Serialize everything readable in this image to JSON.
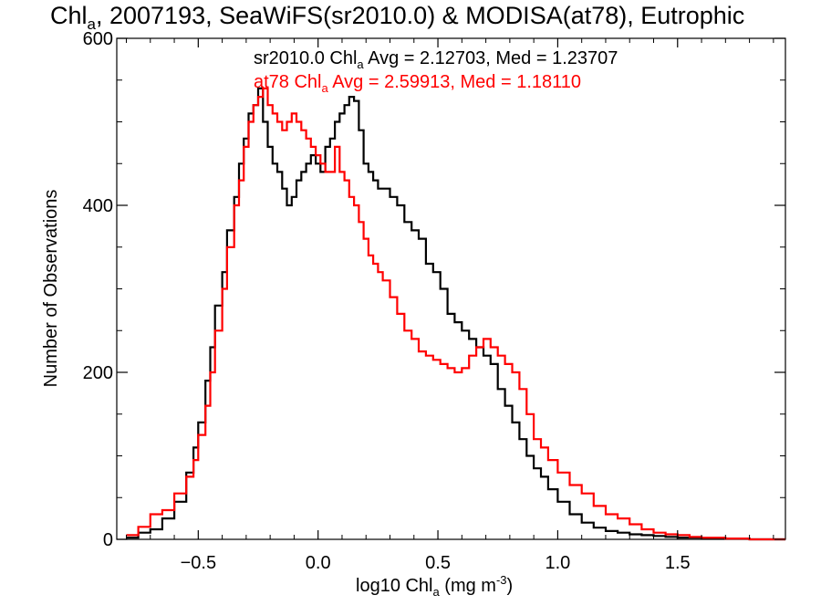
{
  "chart_data": {
    "type": "line",
    "title": {
      "main": "Chl",
      "main_sub": "a",
      "rest": ", 2007193, SeaWiFS(sr2010.0) & MODISA(at78), Eutrophic"
    },
    "xlabel": {
      "pre": "log10 Chl",
      "sub": "a",
      "mid": " (mg m",
      "sup": "-3",
      "post": ")"
    },
    "ylabel": "Number of Observations",
    "xlim": [
      -0.84,
      1.95
    ],
    "ylim": [
      0,
      600
    ],
    "xticks": [
      -0.5,
      0.0,
      0.5,
      1.0,
      1.5
    ],
    "xtick_labels": [
      "−0.5",
      "0.0",
      "0.5",
      "1.0",
      "1.5"
    ],
    "yticks": [
      0,
      200,
      400,
      600
    ],
    "ytick_labels": [
      "0",
      "200",
      "400",
      "600"
    ],
    "grid": false,
    "legend_placement": "top-center",
    "annotations": [
      {
        "pre": "sr2010.0 Chl",
        "sub": "a",
        "post": " Avg = 2.12703, Med = 1.23707",
        "color": "#000000"
      },
      {
        "pre": "at78 Chl",
        "sub": "a",
        "post": " Avg = 2.59913, Med = 1.18110",
        "color": "#ff0000"
      }
    ],
    "series": [
      {
        "color": "#000000",
        "x": [
          -0.8,
          -0.75,
          -0.7,
          -0.65,
          -0.6,
          -0.55,
          -0.52,
          -0.5,
          -0.47,
          -0.45,
          -0.43,
          -0.4,
          -0.38,
          -0.35,
          -0.33,
          -0.31,
          -0.29,
          -0.27,
          -0.25,
          -0.23,
          -0.21,
          -0.19,
          -0.17,
          -0.15,
          -0.13,
          -0.11,
          -0.09,
          -0.07,
          -0.05,
          -0.03,
          -0.01,
          0.01,
          0.03,
          0.05,
          0.07,
          0.09,
          0.11,
          0.13,
          0.15,
          0.17,
          0.19,
          0.21,
          0.23,
          0.25,
          0.27,
          0.3,
          0.33,
          0.36,
          0.39,
          0.42,
          0.45,
          0.48,
          0.51,
          0.54,
          0.57,
          0.6,
          0.63,
          0.66,
          0.69,
          0.72,
          0.75,
          0.78,
          0.81,
          0.84,
          0.87,
          0.9,
          0.93,
          0.96,
          1.0,
          1.05,
          1.1,
          1.15,
          1.2,
          1.25,
          1.3,
          1.35,
          1.4,
          1.45,
          1.5,
          1.55,
          1.6,
          1.65,
          1.7,
          1.75,
          1.8,
          1.85,
          1.9,
          1.95
        ],
        "y": [
          2,
          8,
          12,
          25,
          45,
          80,
          110,
          140,
          190,
          230,
          280,
          320,
          370,
          410,
          450,
          480,
          510,
          520,
          540,
          500,
          470,
          450,
          440,
          420,
          400,
          410,
          430,
          440,
          450,
          460,
          450,
          440,
          470,
          480,
          500,
          510,
          520,
          530,
          525,
          490,
          450,
          440,
          430,
          420,
          420,
          410,
          400,
          380,
          370,
          360,
          330,
          320,
          300,
          270,
          260,
          250,
          240,
          230,
          220,
          210,
          180,
          160,
          140,
          120,
          100,
          85,
          75,
          60,
          45,
          30,
          20,
          14,
          10,
          8,
          6,
          5,
          4,
          3,
          2,
          2,
          1,
          1,
          1,
          1,
          0,
          0,
          0,
          0
        ]
      },
      {
        "color": "#ff0000",
        "x": [
          -0.8,
          -0.75,
          -0.7,
          -0.65,
          -0.6,
          -0.55,
          -0.52,
          -0.5,
          -0.47,
          -0.45,
          -0.43,
          -0.4,
          -0.38,
          -0.35,
          -0.33,
          -0.31,
          -0.29,
          -0.27,
          -0.25,
          -0.23,
          -0.21,
          -0.19,
          -0.17,
          -0.15,
          -0.13,
          -0.11,
          -0.09,
          -0.07,
          -0.05,
          -0.03,
          -0.01,
          0.01,
          0.03,
          0.05,
          0.07,
          0.09,
          0.11,
          0.13,
          0.15,
          0.17,
          0.19,
          0.21,
          0.23,
          0.25,
          0.27,
          0.3,
          0.33,
          0.36,
          0.39,
          0.42,
          0.45,
          0.48,
          0.51,
          0.54,
          0.57,
          0.6,
          0.63,
          0.66,
          0.69,
          0.72,
          0.75,
          0.78,
          0.81,
          0.84,
          0.87,
          0.9,
          0.93,
          0.96,
          1.0,
          1.05,
          1.1,
          1.15,
          1.2,
          1.25,
          1.3,
          1.35,
          1.4,
          1.45,
          1.5,
          1.55,
          1.6,
          1.65,
          1.7,
          1.75,
          1.8,
          1.85,
          1.9,
          1.95
        ],
        "y": [
          5,
          15,
          30,
          35,
          55,
          75,
          95,
          125,
          160,
          200,
          250,
          300,
          350,
          400,
          430,
          470,
          500,
          520,
          530,
          540,
          520,
          510,
          500,
          490,
          500,
          510,
          500,
          490,
          480,
          470,
          460,
          450,
          440,
          440,
          470,
          440,
          430,
          410,
          400,
          380,
          360,
          340,
          330,
          320,
          310,
          290,
          270,
          250,
          240,
          225,
          220,
          215,
          210,
          205,
          200,
          205,
          220,
          230,
          240,
          230,
          220,
          210,
          200,
          180,
          150,
          120,
          110,
          95,
          80,
          65,
          55,
          40,
          30,
          25,
          18,
          12,
          8,
          6,
          5,
          3,
          2,
          2,
          1,
          1,
          0,
          0,
          0,
          0
        ]
      }
    ]
  }
}
